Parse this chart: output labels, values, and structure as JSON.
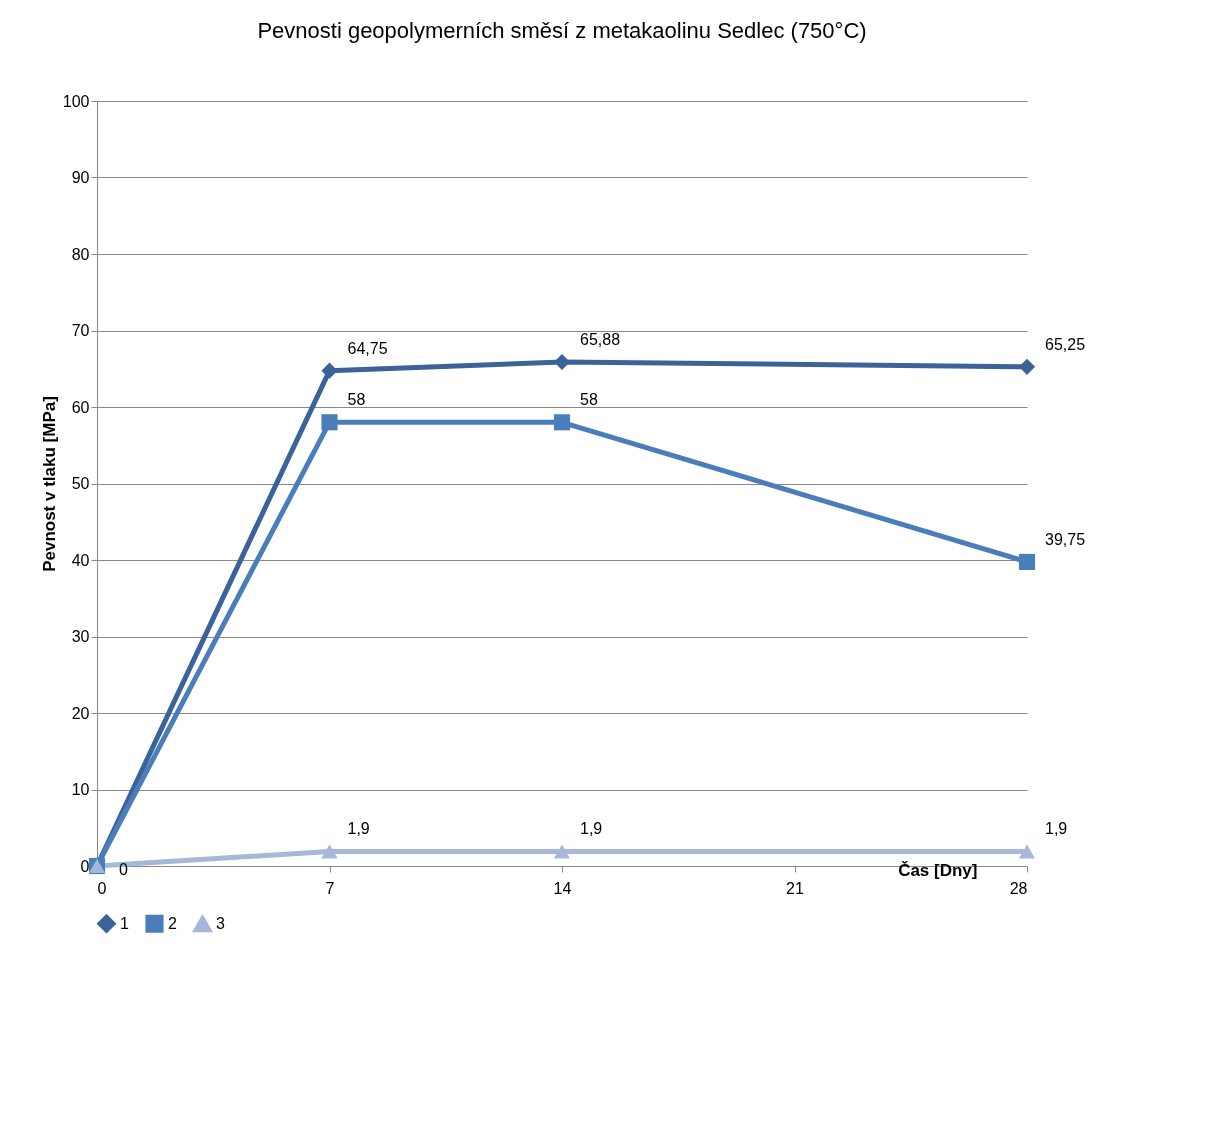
{
  "chart_data": {
    "type": "line",
    "title": "Pevnosti geopolymerních směsí z metakaolinu Sedlec (750°C)",
    "xlabel": "Čas [Dny]",
    "ylabel": "Pevnost v tlaku [MPa]",
    "x": [
      0,
      7,
      14,
      28
    ],
    "series": [
      {
        "name": "1",
        "color": "#3b6299",
        "marker": "diamond",
        "values": [
          0,
          64.75,
          65.88,
          65.25
        ],
        "value_labels": [
          null,
          "64,75",
          "65,88",
          "65,25"
        ]
      },
      {
        "name": "2",
        "color": "#4a7ebb",
        "marker": "square",
        "values": [
          0,
          58,
          58,
          39.75
        ],
        "value_labels": [
          null,
          "58",
          "58",
          "39,75"
        ]
      },
      {
        "name": "3",
        "color": "#a5b8da",
        "marker": "triangle",
        "values": [
          0,
          1.9,
          1.9,
          1.9
        ],
        "value_labels": [
          "0",
          "1,9",
          "1,9",
          "1,9"
        ]
      }
    ],
    "xlim": [
      0,
      28
    ],
    "xticks": [
      0,
      7,
      14,
      21,
      28
    ],
    "ylim": [
      0,
      100
    ],
    "yticks": [
      0,
      10,
      20,
      30,
      40,
      50,
      60,
      70,
      80,
      90,
      100
    ],
    "grid": "y",
    "legend": "bottom",
    "line_style": "solid"
  }
}
